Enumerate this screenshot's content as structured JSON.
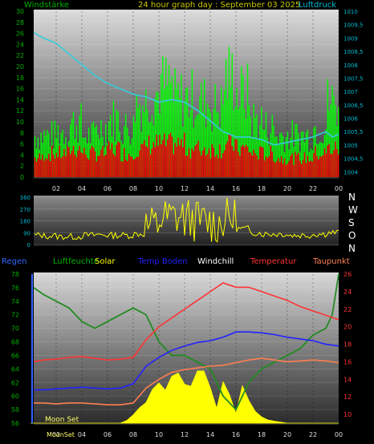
{
  "header": {
    "left_label": "Windstärke",
    "title": "24 hour graph day : September 03 2025",
    "right_label": "Luftdruck"
  },
  "colors": {
    "wind_gust": "#00ff00",
    "wind_avg": "#ff0000",
    "pressure": "#33ccdd",
    "direction": "#ffff00",
    "humidity": "#228b22",
    "solar": "#ffff00",
    "soil_temp": "#2222ff",
    "windchill": "#ffffff",
    "temperature": "#ff3333",
    "dewpoint": "#ff7f50",
    "axis_text": "#00bcd4",
    "axis_text_green": "#00b000",
    "axis_text_red": "#ff3030"
  },
  "time_ticks": [
    "02",
    "04",
    "06",
    "08",
    "10",
    "12",
    "14",
    "16",
    "18",
    "20",
    "22",
    "00"
  ],
  "direction_labels": [
    "N",
    "W",
    "S",
    "O",
    "N"
  ],
  "legend": {
    "regen": "Regen",
    "luftfeuchte": "Luftfeuchte",
    "solar": "Solar",
    "temp_boden": "Temp Boden",
    "windchill": "Windchill",
    "temperatur": "Temperatur",
    "taupunkt": "Taupunkt"
  },
  "moon_set": "Moon Set",
  "moon_set_bottom": "MoonSet",
  "chart_data": [
    {
      "type": "bar",
      "name_left": "Windstärke",
      "name_right": "Luftdruck",
      "left_ticks": [
        "0",
        "2",
        "4",
        "6",
        "8",
        "10",
        "12",
        "14",
        "16",
        "18",
        "20",
        "22",
        "24",
        "26",
        "28",
        "30"
      ],
      "right_ticks": [
        "1004",
        "1004,5",
        "1005",
        "1005,5",
        "1006",
        "1006,5",
        "1007",
        "1007,5",
        "1008",
        "1008,5",
        "1009",
        "1009,5",
        "1010"
      ],
      "ylim_left": [
        0,
        30
      ],
      "ylim_right": [
        1003.8,
        1010
      ],
      "x_range_hours": [
        0.25,
        24
      ],
      "series": [
        {
          "name": "Windstärke",
          "kind": "gust",
          "x": [
            0.5,
            1.5,
            2.5,
            3.5,
            4.5,
            5.5,
            6.5,
            7.5,
            8.5,
            9.5,
            10.5,
            11.5,
            12.5,
            13.5,
            14.5,
            15.5,
            16.5,
            17.5,
            18.5,
            19.5,
            20.5,
            21.5,
            22.5,
            23.5
          ],
          "values": [
            10,
            10,
            11,
            13,
            10,
            12,
            14,
            12,
            18,
            20,
            22,
            19,
            19,
            18,
            17,
            24,
            20,
            14,
            12,
            10,
            10,
            10,
            12,
            18
          ]
        },
        {
          "name": "",
          "kind": "average",
          "x": [
            0.5,
            1.5,
            2.5,
            3.5,
            4.5,
            5.5,
            6.5,
            7.5,
            8.5,
            9.5,
            10.5,
            11.5,
            12.5,
            13.5,
            14.5,
            15.5,
            16.5,
            17.5,
            18.5,
            19.5,
            20.5,
            21.5,
            22.5,
            23.5
          ],
          "values": [
            4,
            5,
            5,
            6,
            5,
            5,
            6,
            5,
            6,
            7,
            7,
            7,
            6,
            6,
            6,
            7,
            6,
            5,
            5,
            4,
            4,
            4,
            5,
            6
          ]
        },
        {
          "name": "Luftdruck",
          "kind": "pressure",
          "x": [
            0.25,
            1,
            2,
            3,
            4,
            5,
            6,
            7,
            8,
            9,
            10,
            11,
            12,
            13,
            14,
            15,
            16,
            17,
            18,
            19,
            20,
            21,
            22,
            23,
            23.5,
            24
          ],
          "values": [
            1009.2,
            1009.0,
            1008.8,
            1008.4,
            1008.0,
            1007.6,
            1007.3,
            1007.1,
            1006.9,
            1006.8,
            1006.6,
            1006.7,
            1006.6,
            1006.3,
            1005.9,
            1005.5,
            1005.3,
            1005.3,
            1005.2,
            1005.0,
            1005.1,
            1005.2,
            1005.3,
            1005.5,
            1005.3,
            1005.4
          ]
        }
      ]
    },
    {
      "type": "line",
      "name": "",
      "y_ticks": [
        "0",
        "90",
        "180",
        "270",
        "360"
      ],
      "ylim": [
        0,
        360
      ],
      "series": [
        {
          "name": "",
          "x": [
            0.5,
            1.5,
            2.5,
            3.5,
            4.5,
            5.5,
            6.5,
            7.5,
            8.5,
            9.5,
            10.5,
            11.5,
            12.5,
            13.5,
            14.5,
            15.5,
            16.5,
            17.5,
            18.5,
            19.5,
            20.5,
            21.5,
            22.5,
            23.5
          ],
          "values": [
            70,
            65,
            60,
            60,
            70,
            75,
            70,
            70,
            80,
            140,
            200,
            210,
            190,
            170,
            160,
            200,
            120,
            90,
            80,
            80,
            70,
            70,
            80,
            90
          ]
        }
      ]
    },
    {
      "type": "line",
      "left_ticks": [
        "56",
        "58",
        "60",
        "62",
        "64",
        "66",
        "68",
        "70",
        "72",
        "74",
        "76",
        "78"
      ],
      "right_ticks": [
        "10",
        "12",
        "14",
        "16",
        "18",
        "20",
        "22",
        "24",
        "26"
      ],
      "ylim_left": [
        56,
        78
      ],
      "ylim_right": [
        9,
        26
      ],
      "series": [
        {
          "name": "Luftfeuchte",
          "axis": "left",
          "x": [
            0,
            1,
            2,
            3,
            4,
            5,
            6,
            7,
            8,
            9,
            10,
            11,
            12,
            13,
            14,
            15,
            16,
            17,
            18,
            19,
            20,
            21,
            22,
            23,
            23.5,
            24
          ],
          "values": [
            76,
            75,
            74,
            73,
            71,
            70,
            71,
            72,
            73,
            72,
            68,
            66,
            66,
            65,
            64,
            60,
            58,
            62,
            64,
            65,
            66,
            67,
            69,
            70,
            72,
            78
          ]
        },
        {
          "name": "Temperatur",
          "axis": "right",
          "x": [
            0,
            1,
            2,
            3,
            4,
            5,
            6,
            7,
            8,
            9,
            10,
            11,
            12,
            13,
            14,
            15,
            16,
            17,
            18,
            19,
            20,
            21,
            22,
            23,
            24
          ],
          "values": [
            16,
            16.2,
            16.3,
            16.5,
            16.6,
            16.4,
            16.2,
            16.3,
            16.5,
            18.5,
            20,
            21,
            22,
            23,
            24,
            25,
            24.5,
            24.5,
            24,
            23.5,
            23,
            22.3,
            21.8,
            21.3,
            20.8
          ]
        },
        {
          "name": "Temp Boden",
          "axis": "right",
          "x": [
            0,
            1,
            2,
            3,
            4,
            5,
            6,
            7,
            8,
            9,
            10,
            11,
            12,
            13,
            14,
            15,
            16,
            17,
            18,
            19,
            20,
            21,
            22,
            23,
            24
          ],
          "values": [
            12.8,
            12.8,
            12.9,
            13,
            13.1,
            13,
            12.9,
            13,
            13.5,
            15.5,
            16.5,
            17.3,
            17.8,
            18.2,
            18.4,
            18.8,
            19.4,
            19.4,
            19.3,
            19.1,
            18.8,
            18.6,
            18.4,
            18.0,
            17.8
          ]
        },
        {
          "name": "Taupunkt",
          "axis": "right",
          "x": [
            0,
            1,
            2,
            3,
            4,
            5,
            6,
            7,
            8,
            9,
            10,
            11,
            12,
            13,
            14,
            15,
            16,
            17,
            18,
            19,
            20,
            21,
            22,
            23,
            24
          ],
          "values": [
            11.3,
            11.3,
            11.2,
            11.3,
            11.3,
            11.2,
            11.1,
            11.1,
            11.3,
            13,
            14,
            14.8,
            15.1,
            15.3,
            15.5,
            15.6,
            15.9,
            16.2,
            16.4,
            16.2,
            16,
            16.1,
            16.2,
            16.1,
            15.9
          ]
        },
        {
          "name": "Solar",
          "kind": "area",
          "x": [
            0,
            6.5,
            7,
            7.5,
            8,
            8.5,
            9,
            9.5,
            10,
            10.5,
            11,
            11.5,
            12,
            12.5,
            13,
            13.5,
            14,
            14.5,
            15,
            15.5,
            16,
            16.5,
            17,
            17.5,
            18,
            18.5,
            19,
            20,
            24
          ],
          "values": [
            0,
            0,
            0,
            0.3,
            0.8,
            1.5,
            2.0,
            2.6,
            3.6,
            2.8,
            3.2,
            3.6,
            4.0,
            3.2,
            3.5,
            4.0,
            2.8,
            1.4,
            3.5,
            2.0,
            1.0,
            2.5,
            1.8,
            0.8,
            0.5,
            0.3,
            0.2,
            0,
            0
          ]
        }
      ]
    }
  ]
}
